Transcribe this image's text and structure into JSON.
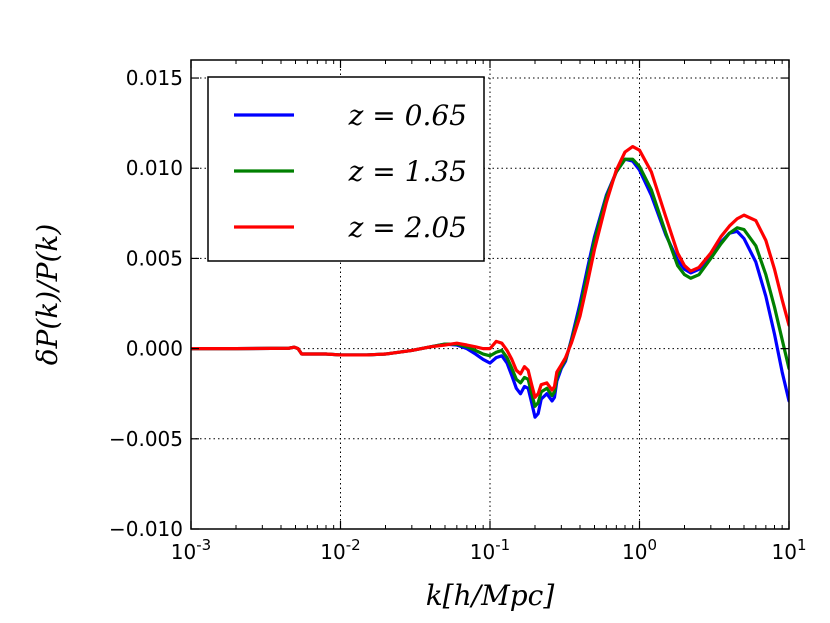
{
  "chart_data": {
    "type": "line",
    "title": "",
    "xlabel": "k[h/Mpc]",
    "ylabel": "δP(k)/P(k)",
    "xscale": "log",
    "xlim": [
      0.001,
      10
    ],
    "ylim": [
      -0.01,
      0.016
    ],
    "grid": true,
    "legend_position": "upper-left",
    "x_ticks": [
      {
        "value": 0.001,
        "base": "10",
        "exp": "-3"
      },
      {
        "value": 0.01,
        "base": "10",
        "exp": "-2"
      },
      {
        "value": 0.1,
        "base": "10",
        "exp": "-1"
      },
      {
        "value": 1,
        "base": "10",
        "exp": "0"
      },
      {
        "value": 10,
        "base": "10",
        "exp": "1"
      }
    ],
    "y_ticks": [
      {
        "value": -0.01,
        "label": "−0.010"
      },
      {
        "value": -0.005,
        "label": "−0.005"
      },
      {
        "value": 0.0,
        "label": "0.000"
      },
      {
        "value": 0.005,
        "label": "0.005"
      },
      {
        "value": 0.01,
        "label": "0.010"
      },
      {
        "value": 0.015,
        "label": "0.015"
      }
    ],
    "series": [
      {
        "name": "z = 0.65",
        "color": "#0000ff",
        "points": [
          [
            0.001,
            0.0
          ],
          [
            0.002,
            0.0
          ],
          [
            0.0045,
            2e-05
          ],
          [
            0.0049,
            8e-05
          ],
          [
            0.0052,
            0.0
          ],
          [
            0.0055,
            -0.0003
          ],
          [
            0.008,
            -0.0003
          ],
          [
            0.01,
            -0.00035
          ],
          [
            0.015,
            -0.00035
          ],
          [
            0.02,
            -0.0003
          ],
          [
            0.03,
            -0.0001
          ],
          [
            0.04,
            0.0001
          ],
          [
            0.05,
            0.00025
          ],
          [
            0.06,
            0.0002
          ],
          [
            0.07,
            0.0
          ],
          [
            0.08,
            -0.0003
          ],
          [
            0.09,
            -0.0006
          ],
          [
            0.1,
            -0.0008
          ],
          [
            0.11,
            -0.0005
          ],
          [
            0.12,
            -0.0004
          ],
          [
            0.13,
            -0.0008
          ],
          [
            0.14,
            -0.0015
          ],
          [
            0.15,
            -0.0022
          ],
          [
            0.16,
            -0.0025
          ],
          [
            0.17,
            -0.0021
          ],
          [
            0.18,
            -0.0022
          ],
          [
            0.19,
            -0.003
          ],
          [
            0.2,
            -0.0038
          ],
          [
            0.21,
            -0.0036
          ],
          [
            0.22,
            -0.0028
          ],
          [
            0.24,
            -0.0025
          ],
          [
            0.26,
            -0.0029
          ],
          [
            0.27,
            -0.0027
          ],
          [
            0.28,
            -0.0018
          ],
          [
            0.3,
            -0.0011
          ],
          [
            0.32,
            -0.0007
          ],
          [
            0.35,
            0.0005
          ],
          [
            0.4,
            0.0025
          ],
          [
            0.45,
            0.0045
          ],
          [
            0.5,
            0.0062
          ],
          [
            0.6,
            0.0085
          ],
          [
            0.7,
            0.0098
          ],
          [
            0.8,
            0.0105
          ],
          [
            0.9,
            0.0104
          ],
          [
            1.0,
            0.0099
          ],
          [
            1.2,
            0.0085
          ],
          [
            1.5,
            0.0063
          ],
          [
            1.8,
            0.0049
          ],
          [
            2.0,
            0.0044
          ],
          [
            2.2,
            0.0042
          ],
          [
            2.5,
            0.0044
          ],
          [
            3.0,
            0.0052
          ],
          [
            3.5,
            0.0059
          ],
          [
            4.0,
            0.0064
          ],
          [
            4.5,
            0.0065
          ],
          [
            5.0,
            0.0061
          ],
          [
            6.0,
            0.0048
          ],
          [
            7.0,
            0.0029
          ],
          [
            8.0,
            0.0008
          ],
          [
            9.0,
            -0.0013
          ],
          [
            10.0,
            -0.0029
          ]
        ]
      },
      {
        "name": "z = 1.35",
        "color": "#008000",
        "points": [
          [
            0.001,
            0.0
          ],
          [
            0.002,
            0.0
          ],
          [
            0.0045,
            2e-05
          ],
          [
            0.0049,
            8e-05
          ],
          [
            0.0052,
            0.0
          ],
          [
            0.0055,
            -0.0003
          ],
          [
            0.008,
            -0.0003
          ],
          [
            0.01,
            -0.00035
          ],
          [
            0.015,
            -0.00035
          ],
          [
            0.02,
            -0.0003
          ],
          [
            0.03,
            -0.0001
          ],
          [
            0.04,
            0.0001
          ],
          [
            0.05,
            0.00025
          ],
          [
            0.06,
            0.00025
          ],
          [
            0.07,
            0.0001
          ],
          [
            0.08,
            -0.0001
          ],
          [
            0.09,
            -0.0003
          ],
          [
            0.1,
            -0.0004
          ],
          [
            0.11,
            -0.0002
          ],
          [
            0.12,
            -0.0001
          ],
          [
            0.13,
            -0.0005
          ],
          [
            0.14,
            -0.0011
          ],
          [
            0.15,
            -0.0017
          ],
          [
            0.16,
            -0.0019
          ],
          [
            0.17,
            -0.0016
          ],
          [
            0.18,
            -0.0017
          ],
          [
            0.19,
            -0.0025
          ],
          [
            0.2,
            -0.0032
          ],
          [
            0.21,
            -0.003
          ],
          [
            0.22,
            -0.0024
          ],
          [
            0.24,
            -0.0022
          ],
          [
            0.26,
            -0.0026
          ],
          [
            0.27,
            -0.0024
          ],
          [
            0.28,
            -0.0016
          ],
          [
            0.3,
            -0.001
          ],
          [
            0.32,
            -0.0006
          ],
          [
            0.35,
            0.0004
          ],
          [
            0.4,
            0.0022
          ],
          [
            0.45,
            0.0042
          ],
          [
            0.5,
            0.006
          ],
          [
            0.6,
            0.0084
          ],
          [
            0.7,
            0.0098
          ],
          [
            0.8,
            0.0105
          ],
          [
            0.9,
            0.0105
          ],
          [
            1.0,
            0.0101
          ],
          [
            1.2,
            0.0088
          ],
          [
            1.5,
            0.0064
          ],
          [
            1.8,
            0.0046
          ],
          [
            2.0,
            0.0041
          ],
          [
            2.2,
            0.0039
          ],
          [
            2.5,
            0.0041
          ],
          [
            3.0,
            0.005
          ],
          [
            3.5,
            0.0058
          ],
          [
            4.0,
            0.0064
          ],
          [
            4.5,
            0.0067
          ],
          [
            5.0,
            0.0066
          ],
          [
            6.0,
            0.0057
          ],
          [
            7.0,
            0.0041
          ],
          [
            8.0,
            0.0023
          ],
          [
            9.0,
            0.0005
          ],
          [
            10.0,
            -0.0011
          ]
        ]
      },
      {
        "name": "z = 2.05",
        "color": "#ff0000",
        "points": [
          [
            0.001,
            0.0
          ],
          [
            0.002,
            0.0
          ],
          [
            0.0045,
            2e-05
          ],
          [
            0.0049,
            8e-05
          ],
          [
            0.0052,
            0.0
          ],
          [
            0.0055,
            -0.0003
          ],
          [
            0.008,
            -0.0003
          ],
          [
            0.01,
            -0.00035
          ],
          [
            0.015,
            -0.00035
          ],
          [
            0.02,
            -0.0003
          ],
          [
            0.03,
            -0.0001
          ],
          [
            0.04,
            0.0001
          ],
          [
            0.05,
            0.0002
          ],
          [
            0.06,
            0.0003
          ],
          [
            0.07,
            0.0002
          ],
          [
            0.08,
            0.0001
          ],
          [
            0.09,
            0.0
          ],
          [
            0.1,
            0.0
          ],
          [
            0.11,
            0.0004
          ],
          [
            0.12,
            0.0003
          ],
          [
            0.13,
            -0.0001
          ],
          [
            0.14,
            -0.0006
          ],
          [
            0.15,
            -0.0012
          ],
          [
            0.16,
            -0.0014
          ],
          [
            0.17,
            -0.001
          ],
          [
            0.18,
            -0.0012
          ],
          [
            0.19,
            -0.002
          ],
          [
            0.2,
            -0.0027
          ],
          [
            0.21,
            -0.0025
          ],
          [
            0.22,
            -0.002
          ],
          [
            0.24,
            -0.0019
          ],
          [
            0.26,
            -0.0023
          ],
          [
            0.27,
            -0.0021
          ],
          [
            0.28,
            -0.0013
          ],
          [
            0.3,
            -0.0009
          ],
          [
            0.32,
            -0.0005
          ],
          [
            0.35,
            0.0003
          ],
          [
            0.4,
            0.0018
          ],
          [
            0.45,
            0.0037
          ],
          [
            0.5,
            0.0055
          ],
          [
            0.6,
            0.0081
          ],
          [
            0.7,
            0.0099
          ],
          [
            0.8,
            0.0109
          ],
          [
            0.9,
            0.0112
          ],
          [
            1.0,
            0.011
          ],
          [
            1.2,
            0.0098
          ],
          [
            1.5,
            0.0073
          ],
          [
            1.8,
            0.0053
          ],
          [
            2.0,
            0.0046
          ],
          [
            2.2,
            0.0043
          ],
          [
            2.5,
            0.0045
          ],
          [
            3.0,
            0.0053
          ],
          [
            3.5,
            0.0062
          ],
          [
            4.0,
            0.0068
          ],
          [
            4.5,
            0.0072
          ],
          [
            5.0,
            0.0074
          ],
          [
            6.0,
            0.0071
          ],
          [
            7.0,
            0.006
          ],
          [
            8.0,
            0.0044
          ],
          [
            9.0,
            0.0027
          ],
          [
            10.0,
            0.0013
          ]
        ]
      }
    ]
  }
}
